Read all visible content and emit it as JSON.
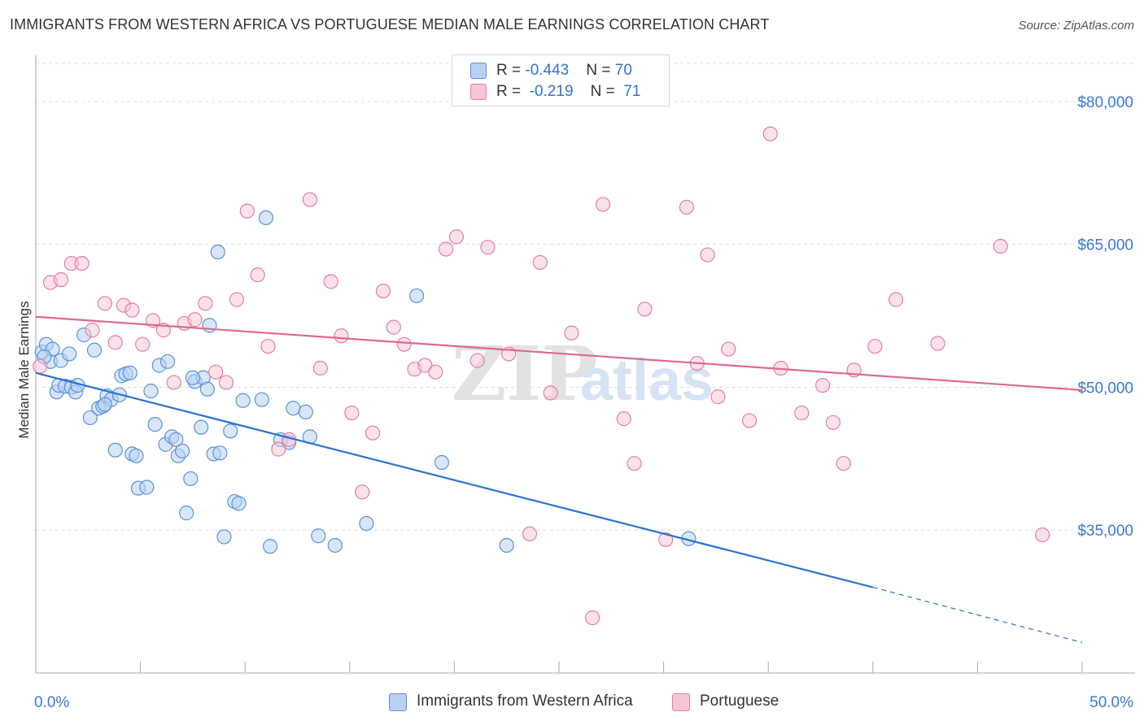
{
  "title": "IMMIGRANTS FROM WESTERN AFRICA VS PORTUGUESE MEDIAN MALE EARNINGS CORRELATION CHART",
  "source": "Source: ZipAtlas.com",
  "watermark": "ZIPatlas",
  "legend": {
    "rows": [
      {
        "r_label": "R = ",
        "r_value": "-0.443",
        "n_label": "N = ",
        "n_value": "70"
      },
      {
        "r_label": "R = ",
        "r_value": "-0.219",
        "n_label": "N = ",
        "n_value": "71"
      }
    ]
  },
  "colors": {
    "blue_fill": "#b8d1f3",
    "blue_stroke": "#5b93d8",
    "blue_line": "#2a72d2",
    "pink_fill": "#f7c5d4",
    "pink_stroke": "#e27fa0",
    "pink_line": "#e06790",
    "axis_label": "#3b78d0",
    "grid": "#dddddd"
  },
  "chart_data": {
    "type": "scatter",
    "title": "IMMIGRANTS FROM WESTERN AFRICA VS PORTUGUESE MEDIAN MALE EARNINGS CORRELATION CHART",
    "xlabel": "",
    "ylabel": "Median Male Earnings",
    "x_unit": "percent",
    "xlim": [
      0,
      50
    ],
    "ylim": [
      20000,
      84000
    ],
    "x_tick_labels": [
      "0.0%",
      "50.0%"
    ],
    "y_ticks": [
      35000,
      50000,
      65000,
      80000
    ],
    "y_tick_labels": [
      "$35,000",
      "$50,000",
      "$65,000",
      "$80,000"
    ],
    "grid": "horizontal dashed",
    "legend_position": "top-center and bottom",
    "series": [
      {
        "name": "Immigrants from Western Africa",
        "r": -0.443,
        "n": 70,
        "trend": {
          "x": [
            0.0,
            40.0
          ],
          "y": [
            51500,
            29000
          ],
          "dashed_to": [
            50.0,
            23200
          ]
        },
        "points": [
          [
            0.3,
            53700
          ],
          [
            0.5,
            54500
          ],
          [
            0.7,
            52700
          ],
          [
            0.8,
            54000
          ],
          [
            1.0,
            49500
          ],
          [
            1.1,
            50200
          ],
          [
            1.2,
            52800
          ],
          [
            1.4,
            50100
          ],
          [
            1.7,
            50000
          ],
          [
            1.9,
            49500
          ],
          [
            2.0,
            50200
          ],
          [
            2.3,
            55500
          ],
          [
            2.6,
            46800
          ],
          [
            2.8,
            53900
          ],
          [
            3.0,
            47800
          ],
          [
            3.2,
            48000
          ],
          [
            3.4,
            49100
          ],
          [
            3.6,
            48700
          ],
          [
            3.8,
            43400
          ],
          [
            4.0,
            49200
          ],
          [
            4.1,
            51200
          ],
          [
            4.3,
            51400
          ],
          [
            4.5,
            51500
          ],
          [
            4.6,
            43000
          ],
          [
            4.8,
            42800
          ],
          [
            4.9,
            39400
          ],
          [
            5.3,
            39500
          ],
          [
            5.5,
            49600
          ],
          [
            5.7,
            46100
          ],
          [
            5.9,
            52300
          ],
          [
            6.2,
            44000
          ],
          [
            6.3,
            52700
          ],
          [
            6.5,
            44800
          ],
          [
            6.7,
            44500
          ],
          [
            6.8,
            42800
          ],
          [
            7.0,
            43300
          ],
          [
            7.2,
            36800
          ],
          [
            7.4,
            40400
          ],
          [
            7.6,
            50600
          ],
          [
            7.9,
            45800
          ],
          [
            8.0,
            51000
          ],
          [
            8.2,
            49800
          ],
          [
            8.3,
            56500
          ],
          [
            8.5,
            43000
          ],
          [
            8.8,
            43100
          ],
          [
            9.0,
            34300
          ],
          [
            9.3,
            45400
          ],
          [
            9.5,
            38000
          ],
          [
            9.7,
            37800
          ],
          [
            9.9,
            48600
          ],
          [
            10.8,
            48700
          ],
          [
            11.0,
            67800
          ],
          [
            11.2,
            33300
          ],
          [
            11.7,
            44500
          ],
          [
            12.1,
            44200
          ],
          [
            12.3,
            47800
          ],
          [
            12.9,
            47400
          ],
          [
            13.1,
            44800
          ],
          [
            13.5,
            34400
          ],
          [
            14.3,
            33400
          ],
          [
            15.8,
            35700
          ],
          [
            18.2,
            59600
          ],
          [
            19.4,
            42100
          ],
          [
            22.5,
            33400
          ],
          [
            31.2,
            34100
          ],
          [
            8.7,
            64200
          ],
          [
            1.6,
            53500
          ],
          [
            3.3,
            48200
          ],
          [
            0.4,
            53200
          ],
          [
            7.5,
            51000
          ]
        ]
      },
      {
        "name": "Portuguese",
        "r": -0.219,
        "n": 71,
        "trend": {
          "x": [
            0.0,
            50.0
          ],
          "y": [
            57400,
            49700
          ]
        },
        "points": [
          [
            0.2,
            52200
          ],
          [
            0.7,
            61000
          ],
          [
            1.2,
            61300
          ],
          [
            1.7,
            63000
          ],
          [
            2.2,
            63000
          ],
          [
            2.7,
            56000
          ],
          [
            3.3,
            58800
          ],
          [
            3.8,
            54700
          ],
          [
            4.2,
            58600
          ],
          [
            4.6,
            58100
          ],
          [
            5.1,
            54500
          ],
          [
            5.6,
            57000
          ],
          [
            6.1,
            56000
          ],
          [
            6.6,
            50500
          ],
          [
            7.1,
            56700
          ],
          [
            7.6,
            57100
          ],
          [
            8.1,
            58800
          ],
          [
            8.6,
            51600
          ],
          [
            9.1,
            50500
          ],
          [
            9.6,
            59200
          ],
          [
            10.1,
            68500
          ],
          [
            10.6,
            61800
          ],
          [
            11.1,
            54300
          ],
          [
            11.6,
            43500
          ],
          [
            12.1,
            44500
          ],
          [
            13.1,
            69700
          ],
          [
            13.6,
            52000
          ],
          [
            14.1,
            61100
          ],
          [
            14.6,
            55400
          ],
          [
            15.1,
            47300
          ],
          [
            15.6,
            39000
          ],
          [
            16.1,
            45200
          ],
          [
            16.6,
            60100
          ],
          [
            17.1,
            56300
          ],
          [
            17.6,
            54500
          ],
          [
            18.1,
            51900
          ],
          [
            18.6,
            52300
          ],
          [
            19.1,
            51600
          ],
          [
            19.6,
            64500
          ],
          [
            20.1,
            65800
          ],
          [
            21.1,
            52800
          ],
          [
            21.6,
            64700
          ],
          [
            22.6,
            53500
          ],
          [
            23.6,
            34600
          ],
          [
            24.1,
            63100
          ],
          [
            24.6,
            49400
          ],
          [
            25.6,
            55700
          ],
          [
            26.6,
            25800
          ],
          [
            27.1,
            69200
          ],
          [
            28.1,
            46700
          ],
          [
            28.6,
            42000
          ],
          [
            29.1,
            58200
          ],
          [
            30.1,
            34000
          ],
          [
            31.1,
            68900
          ],
          [
            31.6,
            52500
          ],
          [
            32.1,
            63900
          ],
          [
            32.6,
            49000
          ],
          [
            33.1,
            54000
          ],
          [
            34.1,
            46500
          ],
          [
            35.1,
            76600
          ],
          [
            35.6,
            52000
          ],
          [
            36.6,
            47300
          ],
          [
            37.6,
            50200
          ],
          [
            38.1,
            46300
          ],
          [
            38.6,
            42000
          ],
          [
            39.1,
            51800
          ],
          [
            40.1,
            54300
          ],
          [
            41.1,
            59200
          ],
          [
            43.1,
            54600
          ],
          [
            46.1,
            64800
          ],
          [
            48.1,
            34500
          ]
        ]
      }
    ]
  },
  "bottom_legend": [
    {
      "label": "Immigrants from Western Africa"
    },
    {
      "label": "Portuguese"
    }
  ]
}
